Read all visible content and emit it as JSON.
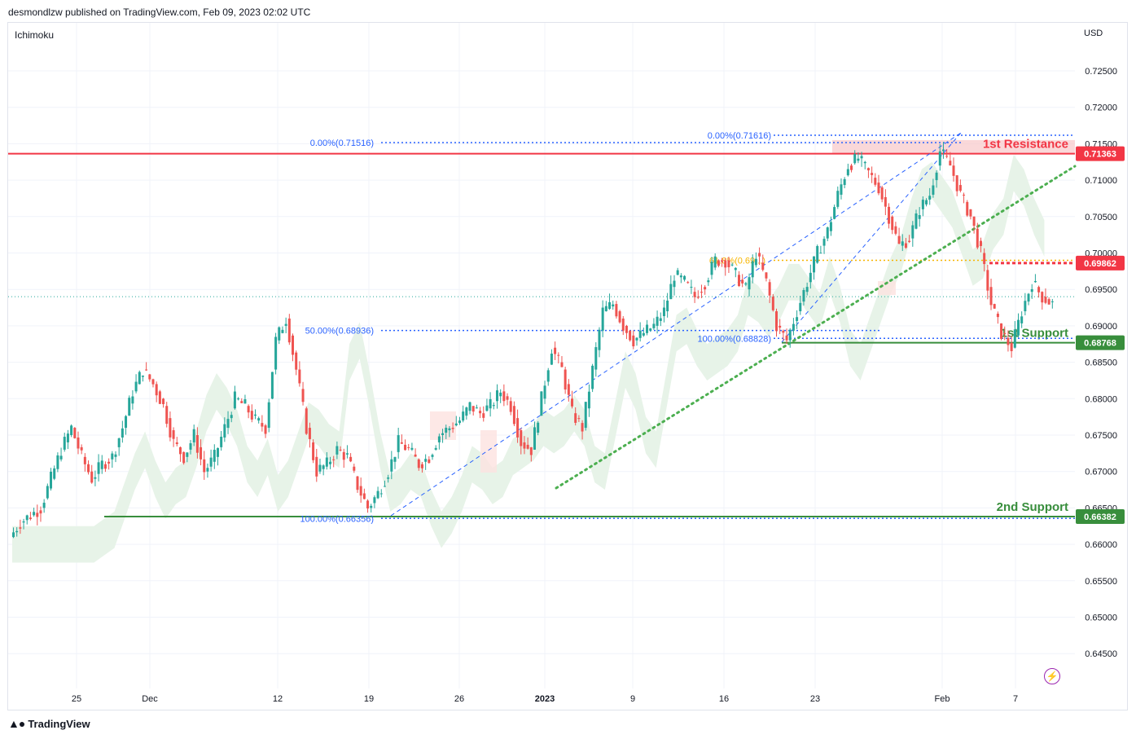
{
  "header": {
    "published_by": "desmondlzw published on TradingView.com, Feb 09, 2023 02:02 UTC"
  },
  "indicator": "Ichimoku",
  "currency": "USD",
  "footer": {
    "brand": "TradingView",
    "logo_icon": "tradingview-logo-icon"
  },
  "colors": {
    "up": "#26a69a",
    "down": "#ef5350",
    "resistance": "#f23645",
    "support": "#388e3c",
    "fib": "#2962ff",
    "fib_618": "#f7b500",
    "trend": "#4caf50",
    "cloud_bull": "#e7f3e8",
    "cloud_bear": "#fde2e0"
  },
  "chart_data": {
    "type": "candlestick",
    "symbol_quote_currency": "USD",
    "y_ticks": [
      "0.72500",
      "0.72000",
      "0.71500",
      "0.71000",
      "0.70500",
      "0.70000",
      "0.69500",
      "0.69000",
      "0.68500",
      "0.68000",
      "0.67500",
      "0.67000",
      "0.66500",
      "0.66000",
      "0.65500",
      "0.65000",
      "0.64500"
    ],
    "ylim": [
      0.64,
      0.73
    ],
    "x_ticks": [
      {
        "label": "25",
        "bold": false
      },
      {
        "label": "Dec",
        "bold": false
      },
      {
        "label": "12",
        "bold": false
      },
      {
        "label": "19",
        "bold": false
      },
      {
        "label": "26",
        "bold": false
      },
      {
        "label": "2023",
        "bold": true
      },
      {
        "label": "9",
        "bold": false
      },
      {
        "label": "16",
        "bold": false
      },
      {
        "label": "23",
        "bold": false
      },
      {
        "label": "Feb",
        "bold": false
      },
      {
        "label": "7",
        "bold": false
      }
    ],
    "price_levels": [
      {
        "name": "1st Resistance",
        "value": 0.71363,
        "label": "0.71363",
        "kind": "resistance"
      },
      {
        "name": "",
        "value": 0.69862,
        "label": "0.69862",
        "kind": "resistance-dotted"
      },
      {
        "name": "1st Support",
        "value": 0.68768,
        "label": "0.68768",
        "kind": "support"
      },
      {
        "name": "2nd Support",
        "value": 0.66382,
        "label": "0.66382",
        "kind": "support"
      }
    ],
    "fib_labels": [
      {
        "text": "0.00%(0.71516)",
        "value": 0.71516
      },
      {
        "text": "50.00%(0.68936)",
        "value": 0.68936
      },
      {
        "text": "100.00%(0.66356)",
        "value": 0.66356
      },
      {
        "text": "0.00%(0.71616)",
        "value": 0.71616
      },
      {
        "text": "61.8%(0.69...)",
        "value": 0.699
      },
      {
        "text": "100.00%(0.68828)",
        "value": 0.68828
      }
    ],
    "current_price_approx": 0.694,
    "close_path": [
      0.663,
      0.664,
      0.665,
      0.669,
      0.673,
      0.676,
      0.672,
      0.669,
      0.671,
      0.672,
      0.676,
      0.681,
      0.684,
      0.682,
      0.679,
      0.674,
      0.672,
      0.675,
      0.67,
      0.672,
      0.676,
      0.68,
      0.679,
      0.677,
      0.676,
      0.688,
      0.691,
      0.684,
      0.676,
      0.67,
      0.671,
      0.673,
      0.672,
      0.668,
      0.665,
      0.667,
      0.67,
      0.674,
      0.673,
      0.671,
      0.672,
      0.675,
      0.676,
      0.677,
      0.679,
      0.678,
      0.679,
      0.681,
      0.679,
      0.674,
      0.673,
      0.68,
      0.687,
      0.684,
      0.678,
      0.676,
      0.684,
      0.692,
      0.693,
      0.69,
      0.688,
      0.689,
      0.69,
      0.692,
      0.697,
      0.696,
      0.694,
      0.696,
      0.699,
      0.699,
      0.697,
      0.695,
      0.7,
      0.696,
      0.69,
      0.688,
      0.692,
      0.696,
      0.7,
      0.703,
      0.708,
      0.712,
      0.713,
      0.711,
      0.709,
      0.705,
      0.701,
      0.702,
      0.706,
      0.708,
      0.714,
      0.712,
      0.708,
      0.705,
      0.7,
      0.693,
      0.689,
      0.687,
      0.692,
      0.696,
      0.694,
      0.693
    ]
  }
}
